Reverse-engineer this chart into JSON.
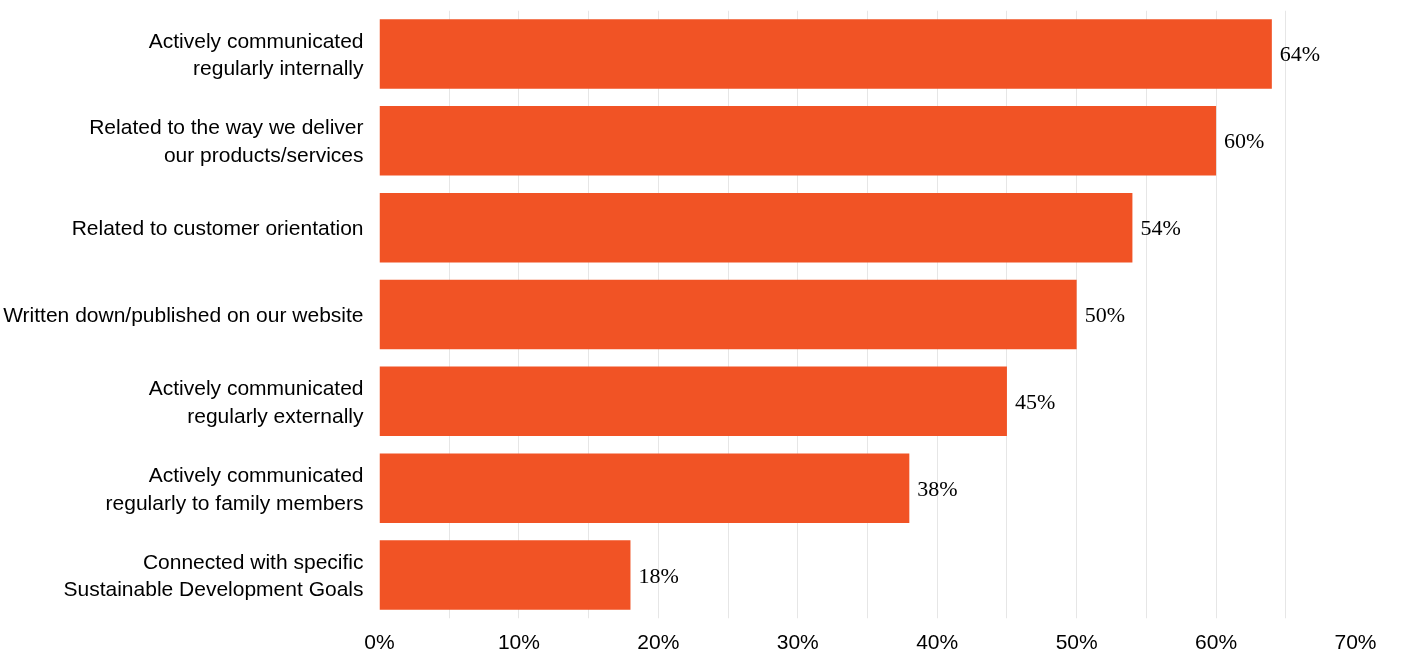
{
  "chart_data": {
    "type": "bar",
    "orientation": "horizontal",
    "categories": [
      "Actively communicated\nregularly internally",
      "Related to the way we deliver\nour products/services",
      "Related to customer orientation",
      "Written down/published on our website",
      "Actively communicated\nregularly externally",
      "Actively communicated\nregularly to family members",
      "Connected with specific\nSustainable Development Goals"
    ],
    "values": [
      64,
      60,
      54,
      50,
      45,
      38,
      18
    ],
    "value_labels": [
      "64%",
      "60%",
      "54%",
      "50%",
      "45%",
      "38%",
      "18%"
    ],
    "color": "#f15325",
    "xlim": [
      0,
      70
    ],
    "xticks": [
      {
        "value": 0,
        "label": "0%"
      },
      {
        "value": 5,
        "label": null
      },
      {
        "value": 10,
        "label": "10%"
      },
      {
        "value": 15,
        "label": null
      },
      {
        "value": 20,
        "label": "20%"
      },
      {
        "value": 25,
        "label": null
      },
      {
        "value": 30,
        "label": "30%"
      },
      {
        "value": 35,
        "label": null
      },
      {
        "value": 40,
        "label": "40%"
      },
      {
        "value": 45,
        "label": null
      },
      {
        "value": 50,
        "label": "50%"
      },
      {
        "value": 55,
        "label": null
      },
      {
        "value": 60,
        "label": "60%"
      },
      {
        "value": 65,
        "label": null
      },
      {
        "value": 70,
        "label": "70%"
      }
    ],
    "grid": "x"
  }
}
